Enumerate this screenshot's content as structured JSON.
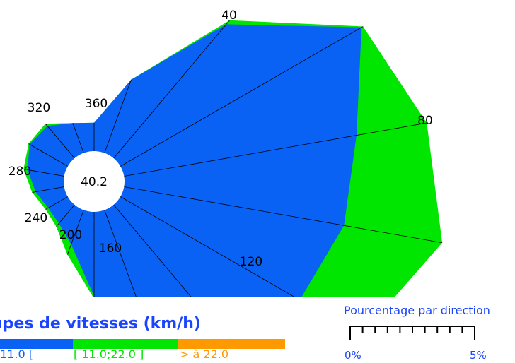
{
  "chart_data": {
    "type": "wind-rose",
    "center_value": "40.2",
    "directions": [
      0,
      20,
      40,
      60,
      80,
      100,
      120,
      140,
      160,
      180,
      200,
      220,
      240,
      260,
      280,
      300,
      320,
      340
    ],
    "direction_labels": [
      "40",
      "80",
      "120",
      "160",
      "200",
      "240",
      "280",
      "320",
      "360"
    ],
    "series": [
      {
        "name": "[ 11.0;22.0 ]",
        "color": "#00e600",
        "values": [
          0.49,
          1.35,
          3.11,
          4.83,
          5.3,
          5.57,
          4.79,
          2.74,
          2.93,
          1.5,
          0.82,
          0.49,
          0.44,
          0.56,
          0.71,
          0.78,
          0.78,
          0.55
        ]
      },
      {
        "name": "11.0 [",
        "color": "#0a62f5",
        "values": [
          0.49,
          1.35,
          3.02,
          4.8,
          4.07,
          3.85,
          3.57,
          2.17,
          2.74,
          1.46,
          0.63,
          0.42,
          0.39,
          0.5,
          0.64,
          0.76,
          0.73,
          0.55
        ]
      }
    ],
    "legend": {
      "title": "upes de vitesses (km/h)",
      "items": [
        {
          "label": "11.0 [",
          "color": "#0a62f5"
        },
        {
          "label": "[ 11.0;22.0 ]",
          "color": "#00e600"
        },
        {
          "label": "> à 22.0",
          "color": "#ff9900"
        }
      ]
    },
    "scale": {
      "title": "Pourcentage par direction",
      "min_label": "0%",
      "max_label": "5%"
    }
  }
}
